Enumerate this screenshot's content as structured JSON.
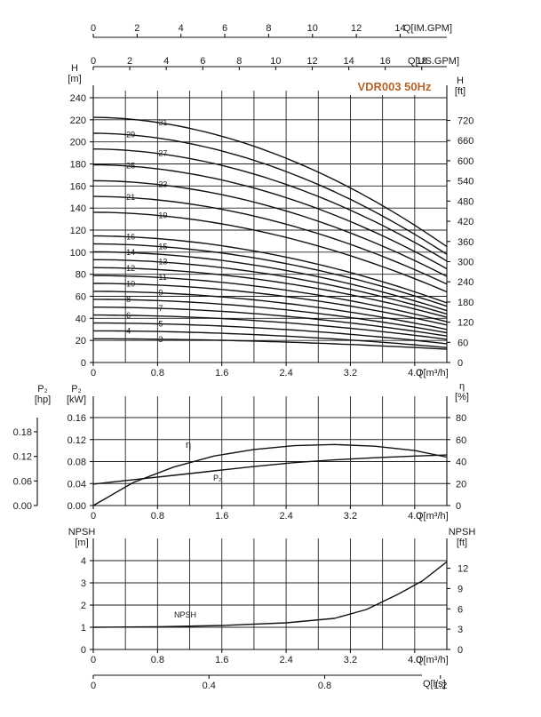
{
  "chart_data": [
    {
      "id": "head",
      "type": "line",
      "title": "VDR003 50Hz",
      "xlabel": "Q[m³/h]",
      "x_ticks": [
        "0",
        "0.8",
        "1.6",
        "2.4",
        "3.2",
        "4.0"
      ],
      "xlim": [
        0,
        4.4
      ],
      "ylabel_left": "H\n[m]",
      "ylabel_right": "H\n[ft]",
      "yticks_left": [
        "0",
        "20",
        "40",
        "60",
        "80",
        "100",
        "120",
        "140",
        "160",
        "180",
        "200",
        "220",
        "240"
      ],
      "yticks_right": [
        "0",
        "60",
        "120",
        "180",
        "240",
        "300",
        "360",
        "420",
        "480",
        "540",
        "600",
        "660",
        "720"
      ],
      "ylim": [
        0,
        240
      ],
      "top_axis_1": {
        "label": "Q[IM.GPM]",
        "ticks": [
          "0",
          "2",
          "4",
          "6",
          "8",
          "10",
          "12",
          "14"
        ]
      },
      "top_axis_2": {
        "label": "Q[US.GPM]",
        "ticks": [
          "0",
          "2",
          "4",
          "6",
          "8",
          "10",
          "12",
          "14",
          "16",
          "18"
        ]
      },
      "series": [
        {
          "name": "3",
          "h0": 21.5,
          "h_end": 12,
          "label_x": 0.8
        },
        {
          "name": "4",
          "h0": 28.7,
          "h_end": 13.5,
          "label_x": 0.4
        },
        {
          "name": "5",
          "h0": 35.8,
          "h_end": 17,
          "label_x": 0.8
        },
        {
          "name": "6",
          "h0": 43,
          "h_end": 21,
          "label_x": 0.4
        },
        {
          "name": "7",
          "h0": 50.2,
          "h_end": 24,
          "label_x": 0.8
        },
        {
          "name": "8",
          "h0": 57.3,
          "h_end": 27,
          "label_x": 0.4
        },
        {
          "name": "9",
          "h0": 64.5,
          "h_end": 30,
          "label_x": 0.8
        },
        {
          "name": "10",
          "h0": 71.7,
          "h_end": 34,
          "label_x": 0.4
        },
        {
          "name": "11",
          "h0": 78.8,
          "h_end": 37,
          "label_x": 0.8
        },
        {
          "name": "12",
          "h0": 86,
          "h_end": 41,
          "label_x": 0.4
        },
        {
          "name": "13",
          "h0": 93.2,
          "h_end": 44,
          "label_x": 0.8
        },
        {
          "name": "14",
          "h0": 100.3,
          "h_end": 47,
          "label_x": 0.4
        },
        {
          "name": "15",
          "h0": 107.5,
          "h_end": 51,
          "label_x": 0.8
        },
        {
          "name": "16",
          "h0": 114.7,
          "h_end": 54,
          "label_x": 0.4
        },
        {
          "name": "19",
          "h0": 136.2,
          "h_end": 64,
          "label_x": 0.8
        },
        {
          "name": "21",
          "h0": 150.5,
          "h_end": 71,
          "label_x": 0.4
        },
        {
          "name": "23",
          "h0": 164.8,
          "h_end": 78,
          "label_x": 0.8
        },
        {
          "name": "25",
          "h0": 179.2,
          "h_end": 85,
          "label_x": 0.4
        },
        {
          "name": "27",
          "h0": 193.5,
          "h_end": 92,
          "label_x": 0.8
        },
        {
          "name": "29",
          "h0": 207.8,
          "h_end": 98,
          "label_x": 0.4
        },
        {
          "name": "31",
          "h0": 222.2,
          "h_end": 105,
          "label_x": 0.8
        }
      ]
    },
    {
      "id": "power_efficiency",
      "type": "line",
      "xlabel": "Q[m³/h]",
      "x_ticks": [
        "0",
        "0.8",
        "1.6",
        "2.4",
        "3.2",
        "4.0"
      ],
      "xlim": [
        0,
        4.4
      ],
      "ylabel_left_hp": "P₂\n[hp]",
      "ylabel_left_kw": "P₂\n[kW]",
      "ylabel_right": "η\n[%]",
      "yticks_hp": [
        "0.00",
        "0.06",
        "0.12",
        "0.18"
      ],
      "yticks_kw": [
        "0.00",
        "0.04",
        "0.08",
        "0.12",
        "0.16"
      ],
      "yticks_right": [
        "0",
        "20",
        "40",
        "60",
        "80"
      ],
      "ylim_kw": [
        0,
        0.16
      ],
      "series": [
        {
          "name": "η",
          "axis": "right",
          "x": [
            0,
            0.5,
            1.0,
            1.5,
            2.0,
            2.5,
            3.0,
            3.5,
            4.0,
            4.4
          ],
          "y": [
            0,
            21,
            35,
            45,
            51,
            54.5,
            55.5,
            54,
            50,
            44
          ]
        },
        {
          "name": "P₂",
          "axis": "left_kw",
          "x": [
            0,
            0.5,
            1.0,
            1.5,
            2.0,
            2.5,
            3.0,
            3.5,
            4.0,
            4.4
          ],
          "y": [
            0.039,
            0.047,
            0.055,
            0.063,
            0.071,
            0.078,
            0.083,
            0.087,
            0.09,
            0.092
          ]
        }
      ]
    },
    {
      "id": "npsh",
      "type": "line",
      "xlabel": "Q[m³/h]",
      "x_ticks": [
        "0",
        "0.8",
        "1.6",
        "2.4",
        "3.2",
        "4.0"
      ],
      "xlim": [
        0,
        4.4
      ],
      "ylabel_left": "NPSH\n[m]",
      "ylabel_right": "NPSH\n[ft]",
      "yticks_left": [
        "0",
        "1",
        "2",
        "3",
        "4"
      ],
      "yticks_right": [
        "0",
        "3",
        "6",
        "9",
        "12"
      ],
      "ylim": [
        0,
        4.3
      ],
      "bottom_axis": {
        "label": "Q[l/s]",
        "ticks": [
          "0",
          "0.4",
          "0.8",
          "1.2"
        ],
        "values": [
          0,
          0.4,
          0.8,
          1.2
        ]
      },
      "series": [
        {
          "name": "NPSH",
          "x": [
            0,
            0.8,
            1.6,
            2.4,
            3.0,
            3.4,
            3.8,
            4.1,
            4.4
          ],
          "y": [
            1.0,
            1.02,
            1.08,
            1.2,
            1.4,
            1.8,
            2.5,
            3.1,
            3.95
          ]
        }
      ]
    }
  ]
}
